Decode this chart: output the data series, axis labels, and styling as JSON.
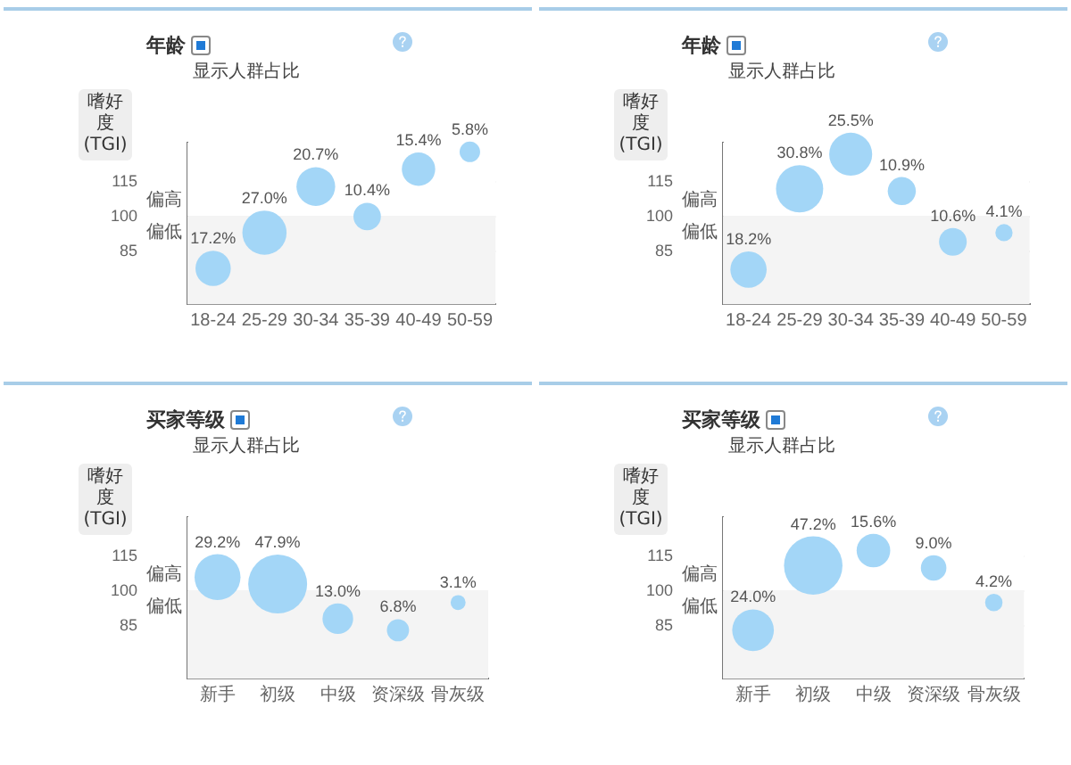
{
  "chart_data": [
    {
      "type": "bubble",
      "title": "年龄",
      "subtitle": "显示人群占比",
      "ylabel": "嗜好度 (TGI)",
      "categories": [
        "18-24",
        "25-29",
        "30-34",
        "35-39",
        "40-49",
        "50-59"
      ],
      "values": [
        77.5,
        93,
        113,
        100,
        120.5,
        128
      ],
      "sizes": [
        17.2,
        27.0,
        20.7,
        10.4,
        15.4,
        5.8
      ],
      "value_labels": [
        "17.2%",
        "27.0%",
        "20.7%",
        "10.4%",
        "15.4%",
        "5.8%"
      ],
      "color": "#a3d6f7",
      "ylim": [
        62,
        132
      ],
      "yticks": [
        85,
        100,
        115
      ],
      "grid": true,
      "legend": false,
      "bands": [
        {
          "axis": "y",
          "from": 100,
          "to": 132,
          "label": "偏高",
          "color": "#ffffff"
        },
        {
          "axis": "y",
          "from": 62,
          "to": 100,
          "label": "偏低",
          "color": "#f4f4f4"
        }
      ]
    },
    {
      "type": "bubble",
      "title": "年龄",
      "subtitle": "显示人群占比",
      "ylabel": "嗜好度 (TGI)",
      "categories": [
        "18-24",
        "25-29",
        "30-34",
        "35-39",
        "40-49",
        "50-59"
      ],
      "values": [
        77,
        112,
        127,
        111,
        89,
        93
      ],
      "sizes": [
        18.2,
        30.8,
        25.5,
        10.9,
        10.6,
        4.1
      ],
      "value_labels": [
        "18.2%",
        "30.8%",
        "25.5%",
        "10.9%",
        "10.6%",
        "4.1%"
      ],
      "color": "#a3d6f7",
      "ylim": [
        62,
        132
      ],
      "yticks": [
        85,
        100,
        115
      ],
      "grid": true,
      "legend": false,
      "bands": [
        {
          "axis": "y",
          "from": 100,
          "to": 132,
          "label": "偏高",
          "color": "#ffffff"
        },
        {
          "axis": "y",
          "from": 62,
          "to": 100,
          "label": "偏低",
          "color": "#f4f4f4"
        }
      ]
    },
    {
      "type": "bubble",
      "title": "买家等级",
      "subtitle": "显示人群占比",
      "ylabel": "嗜好度 (TGI)",
      "categories": [
        "新手",
        "初级",
        "中级",
        "资深级",
        "骨灰级"
      ],
      "values": [
        106,
        103,
        88,
        83,
        95
      ],
      "sizes": [
        29.2,
        47.9,
        13.0,
        6.8,
        3.1
      ],
      "value_labels": [
        "29.2%",
        "47.9%",
        "13.0%",
        "6.8%",
        "3.1%"
      ],
      "color": "#a3d6f7",
      "ylim": [
        62,
        132
      ],
      "yticks": [
        85,
        100,
        115
      ],
      "grid": true,
      "legend": false,
      "bands": [
        {
          "axis": "y",
          "from": 100,
          "to": 132,
          "label": "偏高",
          "color": "#ffffff"
        },
        {
          "axis": "y",
          "from": 62,
          "to": 100,
          "label": "偏低",
          "color": "#f4f4f4"
        }
      ]
    },
    {
      "type": "bubble",
      "title": "买家等级",
      "subtitle": "显示人群占比",
      "ylabel": "嗜好度 (TGI)",
      "categories": [
        "新手",
        "初级",
        "中级",
        "资深级",
        "骨灰级"
      ],
      "values": [
        83,
        111,
        117.5,
        110,
        95
      ],
      "sizes": [
        24.0,
        47.2,
        15.6,
        9.0,
        4.2
      ],
      "value_labels": [
        "24.0%",
        "47.2%",
        "15.6%",
        "9.0%",
        "4.2%"
      ],
      "color": "#a3d6f7",
      "ylim": [
        62,
        132
      ],
      "yticks": [
        85,
        100,
        115
      ],
      "grid": true,
      "legend": false,
      "bands": [
        {
          "axis": "y",
          "from": 100,
          "to": 132,
          "label": "偏高",
          "color": "#ffffff"
        },
        {
          "axis": "y",
          "from": 62,
          "to": 100,
          "label": "偏低",
          "color": "#f4f4f4"
        }
      ]
    }
  ]
}
